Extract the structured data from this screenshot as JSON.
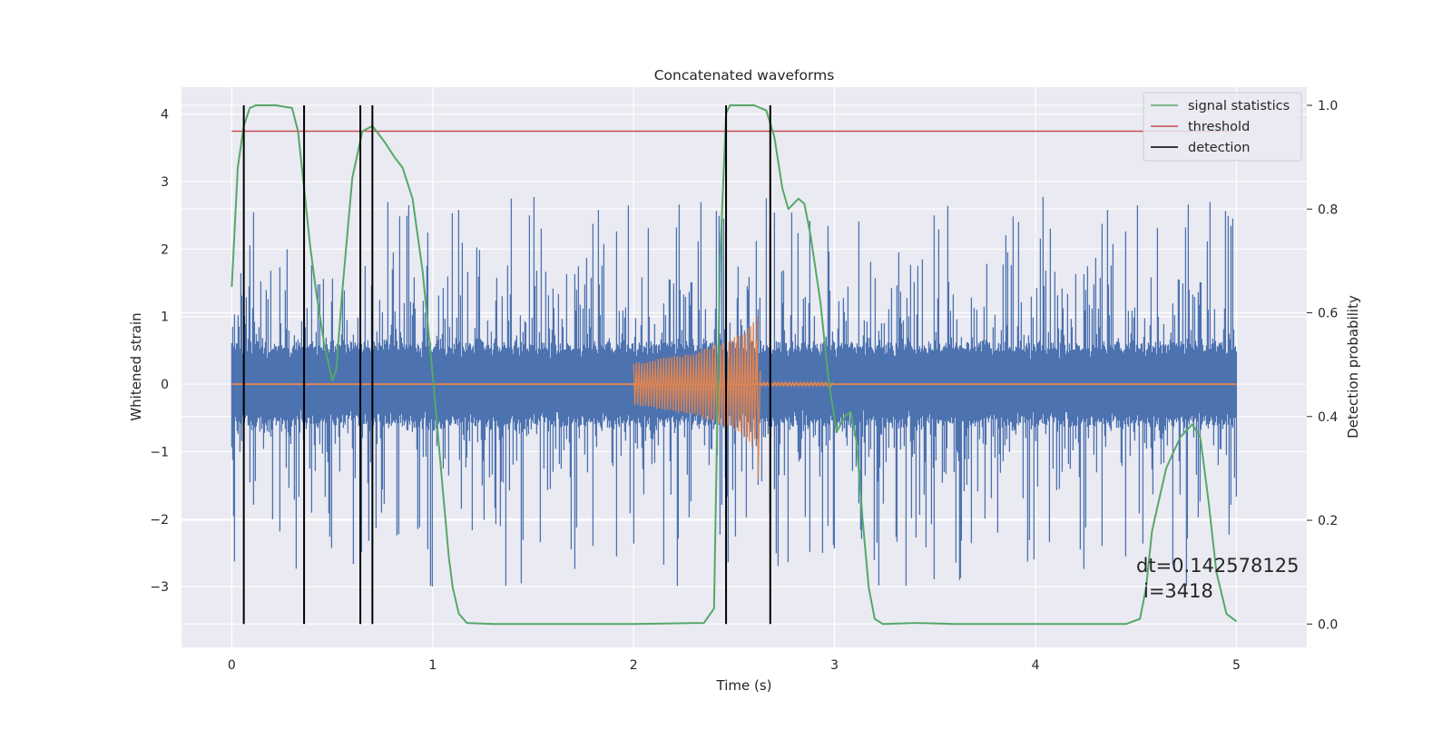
{
  "chart_data": {
    "type": "line",
    "title": "Concatenated waveforms",
    "xlabel": "Time (s)",
    "ylabel_left": "Whitened strain",
    "ylabel_right": "Detection probability",
    "xlim": [
      -0.25,
      5.35
    ],
    "ylim_left": [
      -3.9,
      4.4
    ],
    "ylim_right": [
      -0.045,
      1.035
    ],
    "x_ticks": [
      0,
      1,
      2,
      3,
      4,
      5
    ],
    "y_ticks_left": [
      -3,
      -2,
      -1,
      0,
      1,
      2,
      3,
      4
    ],
    "y_ticks_right": [
      0.0,
      0.2,
      0.4,
      0.6,
      0.8,
      1.0
    ],
    "x_tick_labels": [
      "0",
      "1",
      "2",
      "3",
      "4",
      "5"
    ],
    "y_tick_labels_left": [
      "−3",
      "−2",
      "−1",
      "0",
      "1",
      "2",
      "3",
      "4"
    ],
    "y_tick_labels_right": [
      "0.0",
      "0.2",
      "0.4",
      "0.6",
      "0.8",
      "1.0"
    ],
    "grid": true,
    "legend_position": "top-right",
    "legend": [
      "signal statistics",
      "threshold",
      "detection"
    ],
    "colors": {
      "strain": "#4c72b0",
      "injected_waveform": "#dd8452",
      "signal_statistics": "#55a868",
      "threshold": "#c44e52",
      "detection": "#000000",
      "axes_background": "#eaeaf2",
      "grid": "#ffffff"
    },
    "series": [
      {
        "axis": "left",
        "style": "noise",
        "x_range": [
          0,
          5
        ],
        "typical_amplitude": [
          -0.5,
          0.5
        ],
        "max": 3.3,
        "min": -3.5
      },
      {
        "axis": "left",
        "style": "chirp",
        "x_range": [
          2.0,
          2.62
        ],
        "baseline_range": [
          0,
          5
        ],
        "envelope": [
          [
            2.0,
            0.3
          ],
          [
            2.3,
            0.45
          ],
          [
            2.45,
            0.6
          ],
          [
            2.55,
            0.75
          ],
          [
            2.6,
            0.95
          ],
          [
            2.62,
            0.3
          ]
        ],
        "ringdown_end": 3.0
      },
      {
        "name": "signal statistics",
        "axis": "right",
        "x": [
          0.0,
          0.03,
          0.06,
          0.09,
          0.12,
          0.16,
          0.22,
          0.3,
          0.33,
          0.36,
          0.39,
          0.42,
          0.46,
          0.5,
          0.52,
          0.55,
          0.6,
          0.65,
          0.7,
          0.76,
          0.81,
          0.85,
          0.9,
          0.95,
          1.0,
          1.05,
          1.08,
          1.1,
          1.13,
          1.17,
          1.3,
          2.0,
          2.35,
          2.4,
          2.43,
          2.46,
          2.48,
          2.52,
          2.6,
          2.66,
          2.7,
          2.74,
          2.77,
          2.82,
          2.85,
          2.88,
          2.93,
          2.97,
          3.01,
          3.05,
          3.08,
          3.11,
          3.14,
          3.17,
          3.2,
          3.24,
          3.4,
          3.6,
          4.0,
          4.45,
          4.52,
          4.55,
          4.58,
          4.65,
          4.72,
          4.78,
          4.82,
          4.86,
          4.9,
          4.95,
          5.0
        ],
        "y": [
          0.65,
          0.88,
          0.96,
          0.995,
          1.0,
          1.0,
          1.0,
          0.995,
          0.95,
          0.84,
          0.73,
          0.64,
          0.54,
          0.47,
          0.49,
          0.64,
          0.86,
          0.95,
          0.96,
          0.93,
          0.9,
          0.88,
          0.82,
          0.68,
          0.48,
          0.26,
          0.13,
          0.07,
          0.02,
          0.002,
          0.0,
          0.0,
          0.002,
          0.03,
          0.7,
          0.985,
          1.0,
          1.0,
          1.0,
          0.99,
          0.94,
          0.84,
          0.8,
          0.82,
          0.81,
          0.75,
          0.62,
          0.47,
          0.37,
          0.4,
          0.41,
          0.35,
          0.2,
          0.07,
          0.01,
          0.0,
          0.002,
          0.0,
          0.0,
          0.0,
          0.01,
          0.07,
          0.18,
          0.3,
          0.36,
          0.385,
          0.36,
          0.24,
          0.1,
          0.02,
          0.005
        ]
      },
      {
        "name": "threshold",
        "axis": "right",
        "x": [
          0,
          5
        ],
        "y": [
          0.95,
          0.95
        ]
      }
    ],
    "detections": [
      0.06,
      0.36,
      0.64,
      0.7,
      2.46,
      2.68
    ],
    "detection_range": [
      0.0,
      1.0
    ]
  },
  "annotation": {
    "line1": "dt=0.142578125",
    "line2": "i=3418"
  }
}
